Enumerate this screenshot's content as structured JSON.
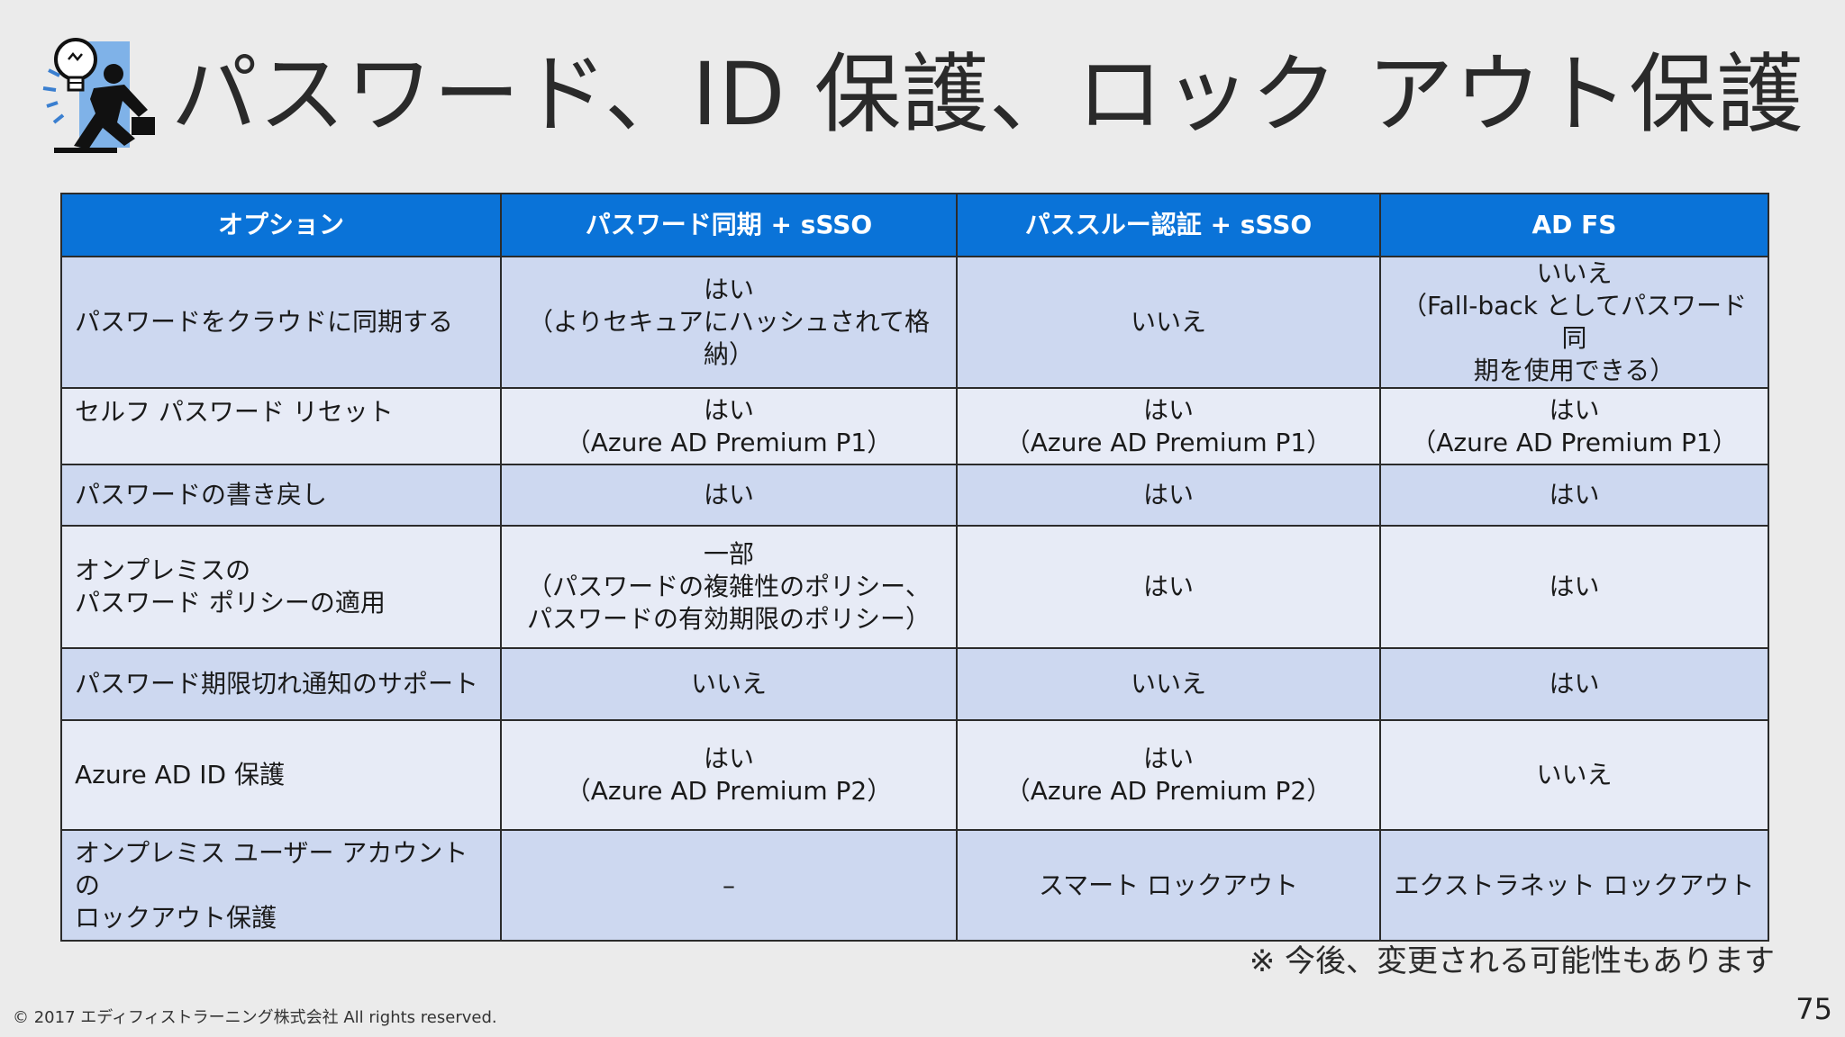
{
  "slide": {
    "title": "パスワード、ID 保護、ロック アウト保護",
    "logo_icon": "lightbulb-person-icon",
    "note": "※ 今後、変更される可能性もあります",
    "footer": "© 2017 エディフィストラーニング株式会社 All rights reserved.",
    "page_number": "75"
  },
  "table": {
    "headers": [
      "オプション",
      "パスワード同期 + sSSO",
      "パススルー認証 + sSSO",
      "AD FS"
    ],
    "rows": [
      {
        "option": "パスワードをクラウドに同期する",
        "phs": "はい\n（よりセキュアにハッシュされて格納）",
        "pta": "いいえ",
        "adfs": "いいえ\n（Fall-back としてパスワード同\n期を使用できる）"
      },
      {
        "option": "セルフ パスワード リセット",
        "phs": "はい\n（Azure AD Premium P1）",
        "pta": "はい\n（Azure AD Premium P1）",
        "adfs": "はい\n（Azure AD Premium P1）"
      },
      {
        "option": "パスワードの書き戻し",
        "phs": "はい",
        "pta": "はい",
        "adfs": "はい"
      },
      {
        "option": "オンプレミスの\nパスワード ポリシーの適用",
        "phs": "一部\n（パスワードの複雑性のポリシー、\nパスワードの有効期限のポリシー）",
        "pta": "はい",
        "adfs": "はい"
      },
      {
        "option": "パスワード期限切れ通知のサポート",
        "phs": "いいえ",
        "pta": "いいえ",
        "adfs": "はい"
      },
      {
        "option": "Azure AD ID 保護",
        "phs": "はい\n（Azure AD Premium P2）",
        "pta": "はい\n（Azure AD Premium P2）",
        "adfs": "いいえ"
      },
      {
        "option": "オンプレミス ユーザー アカウントの\nロックアウト保護",
        "phs": "–",
        "pta": "スマート ロックアウト",
        "adfs": "エクストラネット ロックアウト"
      }
    ]
  },
  "colors": {
    "header_bg": "#0a73d8",
    "row_dark": "#cdd8f0",
    "row_light": "#e7ebf6",
    "background": "#ebebeb"
  }
}
